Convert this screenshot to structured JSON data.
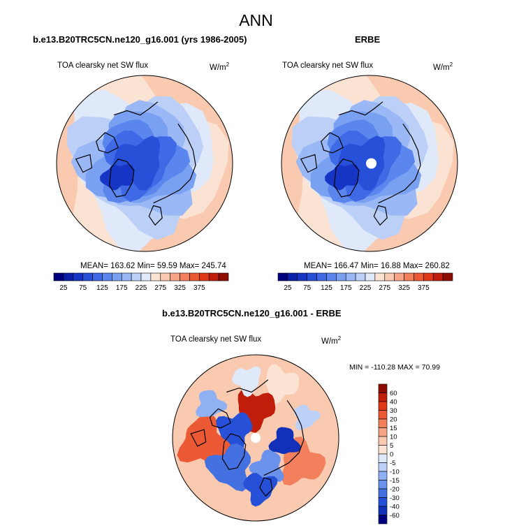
{
  "page": {
    "title": "ANN"
  },
  "panels": [
    {
      "title": "b.e13.B20TRC5CN.ne120_g16.001 (yrs 1986-2005)",
      "left_label": "TOA clearsky net SW flux",
      "units_base": "W/m",
      "units_exp": "2",
      "stats": {
        "mean": "163.62",
        "min": "59.59",
        "max": "245.74"
      },
      "stats_text": "MEAN= 163.62  Min=  59.59  Max= 245.74",
      "has_polar_hole": false
    },
    {
      "title": "ERBE",
      "left_label": "TOA clearsky net SW flux",
      "units_base": "W/m",
      "units_exp": "2",
      "stats": {
        "mean": "166.47",
        "min": "16.88",
        "max": "260.82"
      },
      "stats_text": "MEAN= 166.47  Min=  16.88  Max= 260.82",
      "has_polar_hole": true
    },
    {
      "title": "b.e13.B20TRC5CN.ne120_g16.001 - ERBE",
      "left_label": "TOA clearsky net SW flux",
      "units_base": "W/m",
      "units_exp": "2",
      "stats": {
        "min": "-110.28",
        "max": "70.99"
      },
      "stats_text": "MIN = -110.28 MAX =  70.99",
      "has_polar_hole": true
    }
  ],
  "colorbars": {
    "absolute": {
      "tick_labels": [
        "25",
        "75",
        "125",
        "175",
        "225",
        "275",
        "325",
        "375"
      ],
      "colors": [
        "#00007f",
        "#0a1fa8",
        "#1635c4",
        "#2650d8",
        "#3e6ae6",
        "#5a86ee",
        "#7aa0f2",
        "#9ab8f5",
        "#bcd0f7",
        "#dfe9fa",
        "#fbe3d4",
        "#f9c9b0",
        "#f6a586",
        "#f2805d",
        "#ec5a35",
        "#de3a18",
        "#c01e0a",
        "#8e0c04"
      ]
    },
    "difference": {
      "tick_labels": [
        "60",
        "40",
        "30",
        "20",
        "15",
        "10",
        "5",
        "0",
        "-5",
        "-10",
        "-15",
        "-20",
        "-30",
        "-40",
        "-60"
      ],
      "colors": [
        "#8e0c04",
        "#c01e0a",
        "#de3a18",
        "#ec5a35",
        "#f2805d",
        "#f6a586",
        "#f9c9b0",
        "#fbe3d4",
        "#dfe9fa",
        "#bcd0f7",
        "#8fb0f3",
        "#6a92ec",
        "#4471e2",
        "#2650d8",
        "#1230b8",
        "#00007f"
      ]
    }
  },
  "chart_data": [
    {
      "type": "heatmap",
      "title": "b.e13.B20TRC5CN.ne120_g16.001 (yrs 1986-2005)",
      "variable": "TOA clearsky net SW flux",
      "units": "W/m2",
      "season": "ANN",
      "mean": 163.62,
      "min": 59.59,
      "max": 245.74,
      "contour_levels": [
        25,
        50,
        75,
        100,
        125,
        150,
        175,
        200,
        225,
        250,
        275,
        300,
        325,
        350,
        375
      ]
    },
    {
      "type": "heatmap",
      "title": "ERBE",
      "variable": "TOA clearsky net SW flux",
      "units": "W/m2",
      "season": "ANN",
      "mean": 166.47,
      "min": 16.88,
      "max": 260.82,
      "contour_levels": [
        25,
        50,
        75,
        100,
        125,
        150,
        175,
        200,
        225,
        250,
        275,
        300,
        325,
        350,
        375
      ]
    },
    {
      "type": "heatmap",
      "title": "b.e13.B20TRC5CN.ne120_g16.001 - ERBE",
      "variable": "TOA clearsky net SW flux",
      "units": "W/m2",
      "season": "ANN",
      "min": -110.28,
      "max": 70.99,
      "contour_levels": [
        -60,
        -40,
        -30,
        -20,
        -15,
        -10,
        -5,
        0,
        5,
        10,
        15,
        20,
        30,
        40,
        60
      ]
    }
  ]
}
